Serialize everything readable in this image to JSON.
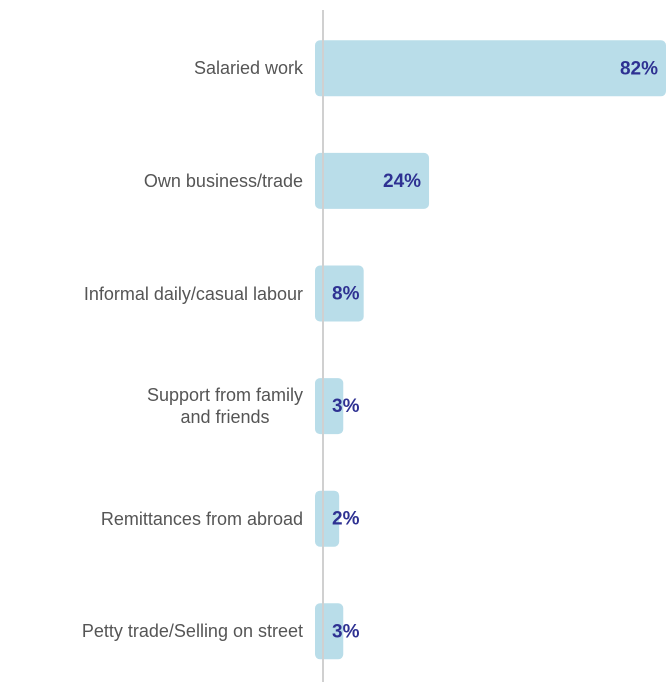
{
  "chart_data": {
    "type": "bar",
    "orientation": "horizontal",
    "categories": [
      "Salaried work",
      "Own business/trade",
      "Informal daily/casual labour",
      "Support from family\nand friends",
      "Remittances from abroad",
      "Petty trade/Selling on street"
    ],
    "values": [
      82,
      24,
      8,
      3,
      2,
      3
    ],
    "value_labels": [
      "82%",
      "24%",
      "8%",
      "3%",
      "2%",
      "3%"
    ],
    "color": "#b9dde9",
    "label_color": "#2e3192",
    "xlim": [
      0,
      82
    ]
  }
}
